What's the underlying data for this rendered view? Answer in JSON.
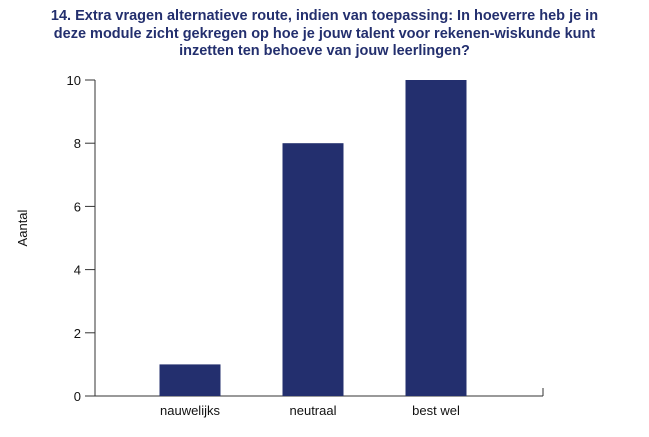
{
  "chart_data": {
    "type": "bar",
    "title_lines": [
      "14. Extra vragen alternatieve route, indien van toepassing: In hoeverre heb je in",
      "deze module zicht gekregen op hoe je jouw talent voor rekenen-wiskunde kunt",
      "inzetten ten behoeve van jouw leerlingen?"
    ],
    "categories": [
      "nauwelijks",
      "neutraal",
      "best wel"
    ],
    "values": [
      1,
      8,
      10
    ],
    "xlabel": "",
    "ylabel": "Aantal",
    "ylim": [
      0,
      10
    ],
    "yticks": [
      0,
      2,
      4,
      6,
      8,
      10
    ],
    "grid": false,
    "legend": "none",
    "bar_color": "#232f6e",
    "title_color": "#232f6e"
  }
}
